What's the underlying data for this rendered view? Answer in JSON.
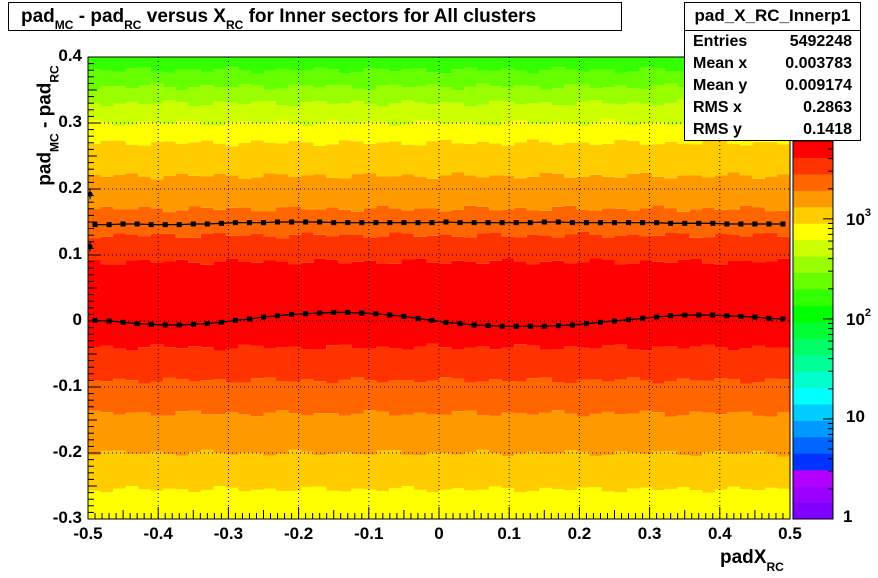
{
  "title": {
    "part1": "pad",
    "sub1": "MC",
    "part2": " - pad",
    "sub2": "RC",
    "part3": " versus X",
    "sub3": "RC",
    "part4": " for Inner sectors for All clusters"
  },
  "stats": {
    "name": "pad_X_RC_Innerp1",
    "rows": [
      {
        "label": "Entries",
        "value": "5492248"
      },
      {
        "label": "Mean x",
        "value": "0.003783"
      },
      {
        "label": "Mean y",
        "value": "0.009174"
      },
      {
        "label": "RMS x",
        "value": "0.2863"
      },
      {
        "label": "RMS y",
        "value": "0.1418"
      }
    ]
  },
  "axes": {
    "x_title": "padX",
    "x_title_sub": "RC",
    "y_title_main": "pad",
    "y_title_sub1": "MC",
    "y_title_mid": " - pad",
    "y_title_sub2": "RC"
  },
  "zaxis": {
    "labels": [
      "1",
      "10",
      "10",
      "10"
    ],
    "exponents": [
      "",
      "",
      "2",
      "3"
    ],
    "palette": [
      "#7f00ff",
      "#9900ff",
      "#b200ff",
      "#0033ff",
      "#0066ff",
      "#0099ff",
      "#00ccff",
      "#00ffff",
      "#00ffcc",
      "#00ff99",
      "#00ff66",
      "#00ff33",
      "#00ff00",
      "#33ff00",
      "#66ff00",
      "#99ff00",
      "#ccff00",
      "#ffff00",
      "#ffcc00",
      "#ff9900",
      "#ff6600",
      "#ff3300",
      "#ff0000"
    ],
    "scale": "log",
    "range": [
      1,
      6000
    ]
  },
  "chart_data": {
    "type": "heatmap",
    "title": "pad_MC - pad_RC versus X_RC for Inner sectors for All clusters",
    "xlabel": "padX_RC",
    "ylabel": "pad_MC - pad_RC",
    "xlim": [
      -0.5,
      0.5
    ],
    "ylim": [
      -0.3,
      0.4
    ],
    "x_ticks": [
      "-0.5",
      "-0.4",
      "-0.3",
      "-0.2",
      "-0.1",
      "0",
      "0.1",
      "0.2",
      "0.3",
      "0.4",
      "0.5"
    ],
    "y_ticks": [
      "-0.3",
      "-0.2",
      "-0.1",
      "0",
      "0.1",
      "0.2",
      "0.3",
      "0.4"
    ],
    "grid": true,
    "z_scale": "log",
    "color_bands": [
      {
        "y_from": -0.3,
        "y_to": -0.255,
        "color": "#ffff00"
      },
      {
        "y_from": -0.255,
        "y_to": -0.2,
        "color": "#ffcc00"
      },
      {
        "y_from": -0.2,
        "y_to": -0.14,
        "color": "#ff9900"
      },
      {
        "y_from": -0.14,
        "y_to": -0.09,
        "color": "#ff6600"
      },
      {
        "y_from": -0.09,
        "y_to": -0.04,
        "color": "#ff3300"
      },
      {
        "y_from": -0.04,
        "y_to": 0.09,
        "color": "#ff0000"
      },
      {
        "y_from": 0.09,
        "y_to": 0.13,
        "color": "#ff3300"
      },
      {
        "y_from": 0.13,
        "y_to": 0.17,
        "color": "#ff6600"
      },
      {
        "y_from": 0.17,
        "y_to": 0.22,
        "color": "#ff9900"
      },
      {
        "y_from": 0.22,
        "y_to": 0.27,
        "color": "#ffcc00"
      },
      {
        "y_from": 0.27,
        "y_to": 0.3,
        "color": "#ffff00"
      },
      {
        "y_from": 0.3,
        "y_to": 0.33,
        "color": "#ccff00"
      },
      {
        "y_from": 0.33,
        "y_to": 0.355,
        "color": "#99ff00"
      },
      {
        "y_from": 0.355,
        "y_to": 0.38,
        "color": "#66ff00"
      },
      {
        "y_from": 0.38,
        "y_to": 0.4,
        "color": "#33ff00"
      }
    ],
    "series": [
      {
        "kind": "mean",
        "x": [
          -0.49,
          -0.47,
          -0.45,
          -0.43,
          -0.41,
          -0.39,
          -0.37,
          -0.35,
          -0.33,
          -0.31,
          -0.29,
          -0.27,
          -0.25,
          -0.23,
          -0.21,
          -0.19,
          -0.17,
          -0.15,
          -0.13,
          -0.11,
          -0.09,
          -0.07,
          -0.05,
          -0.03,
          -0.01,
          0.01,
          0.03,
          0.05,
          0.07,
          0.09,
          0.11,
          0.13,
          0.15,
          0.17,
          0.19,
          0.21,
          0.23,
          0.25,
          0.27,
          0.29,
          0.31,
          0.33,
          0.35,
          0.37,
          0.39,
          0.41,
          0.43,
          0.45,
          0.47,
          0.49
        ],
        "y": [
          0.001,
          0.0,
          -0.002,
          -0.004,
          -0.005,
          -0.006,
          -0.006,
          -0.005,
          -0.004,
          -0.002,
          0.001,
          0.003,
          0.006,
          0.008,
          0.01,
          0.011,
          0.012,
          0.013,
          0.013,
          0.012,
          0.011,
          0.009,
          0.007,
          0.004,
          0.001,
          -0.002,
          -0.004,
          -0.006,
          -0.007,
          -0.008,
          -0.008,
          -0.008,
          -0.008,
          -0.007,
          -0.006,
          -0.004,
          -0.002,
          0.0,
          0.002,
          0.004,
          0.006,
          0.008,
          0.009,
          0.009,
          0.009,
          0.008,
          0.007,
          0.006,
          0.004,
          0.003
        ]
      },
      {
        "kind": "rms",
        "x": [
          -0.49,
          -0.47,
          -0.45,
          -0.43,
          -0.41,
          -0.39,
          -0.37,
          -0.35,
          -0.33,
          -0.31,
          -0.29,
          -0.27,
          -0.25,
          -0.23,
          -0.21,
          -0.19,
          -0.17,
          -0.15,
          -0.13,
          -0.11,
          -0.09,
          -0.07,
          -0.05,
          -0.03,
          -0.01,
          0.01,
          0.03,
          0.05,
          0.07,
          0.09,
          0.11,
          0.13,
          0.15,
          0.17,
          0.19,
          0.21,
          0.23,
          0.25,
          0.27,
          0.29,
          0.31,
          0.33,
          0.35,
          0.37,
          0.39,
          0.41,
          0.43,
          0.45,
          0.47,
          0.49
        ],
        "y": [
          0.146,
          0.146,
          0.147,
          0.147,
          0.146,
          0.146,
          0.146,
          0.147,
          0.147,
          0.148,
          0.149,
          0.149,
          0.149,
          0.15,
          0.15,
          0.15,
          0.15,
          0.149,
          0.149,
          0.149,
          0.149,
          0.149,
          0.149,
          0.149,
          0.149,
          0.15,
          0.149,
          0.149,
          0.149,
          0.149,
          0.149,
          0.149,
          0.15,
          0.15,
          0.149,
          0.149,
          0.149,
          0.149,
          0.149,
          0.149,
          0.149,
          0.148,
          0.148,
          0.148,
          0.148,
          0.147,
          0.147,
          0.147,
          0.147,
          0.147
        ]
      }
    ],
    "outlier_points": [
      {
        "x": -0.497,
        "y": 0.192
      },
      {
        "x": -0.497,
        "y": 0.113
      }
    ]
  }
}
